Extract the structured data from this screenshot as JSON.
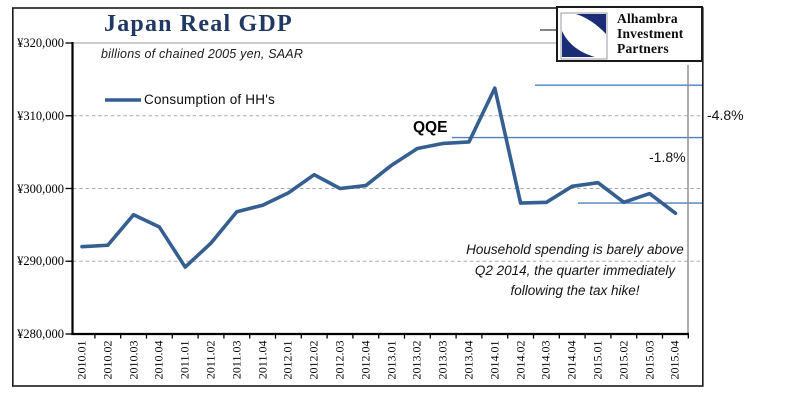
{
  "header": {
    "title": "Japan Real GDP",
    "subtitle": "billions of chained 2005 yen, SAAR"
  },
  "logo": {
    "line1": "Alhambra",
    "line2": "Investment",
    "line3": "Partners"
  },
  "legend": {
    "series_label": "Consumption of HH's"
  },
  "chart_data": {
    "type": "line",
    "title": "Japan Real GDP",
    "subtitle": "billions of chained 2005 yen, SAAR",
    "categories": [
      "2010.01",
      "2010.02",
      "2010.03",
      "2010.04",
      "2011.01",
      "2011.02",
      "2011.03",
      "2011.04",
      "2012.01",
      "2012.02",
      "2012.03",
      "2012.04",
      "2013.01",
      "2013.02",
      "2013.03",
      "2013.04",
      "2014.01",
      "2014.02",
      "2014.03",
      "2014.04",
      "2015.01",
      "2015.02",
      "2015.03",
      "2015.04"
    ],
    "series": [
      {
        "name": "Consumption of HH's",
        "color": "#365F91",
        "values": [
          292000,
          292200,
          296400,
          294700,
          289200,
          292500,
          296800,
          297700,
          299400,
          301900,
          300000,
          300400,
          303200,
          305500,
          306200,
          306400,
          313800,
          298000,
          298100,
          300300,
          300800,
          298100,
          299300,
          296600
        ]
      }
    ],
    "ylim": [
      280000,
      320000
    ],
    "y_tick_values": [
      320000,
      310000,
      300000,
      290000,
      280000
    ],
    "y_tick_labels": [
      "¥320,000",
      "¥310,000",
      "¥300,000",
      "¥290,000",
      "¥280,000"
    ],
    "grid": "horizontal-dashed",
    "legend_position": "top-left-inside"
  },
  "annotations": {
    "qqe_label": "QQE",
    "pct_top": "-4.8%",
    "pct_bottom": "-1.8%",
    "note_lines": {
      "0": "Household spending is barely above",
      "1": "Q2 2014, the quarter immediately",
      "2": "following the tax hike!"
    },
    "ref_line_values": [
      314200,
      307000,
      298000
    ],
    "vline_at_category": "2015.04"
  },
  "colors": {
    "series_line": "#365F91",
    "ref_line_blue": "#4F81BD",
    "vline_gray": "#8C8C8C",
    "grid_gray": "#ABABAB",
    "title_navy": "#1F3864",
    "logo_navy": "#1B2C77",
    "axis_black": "#000000"
  }
}
